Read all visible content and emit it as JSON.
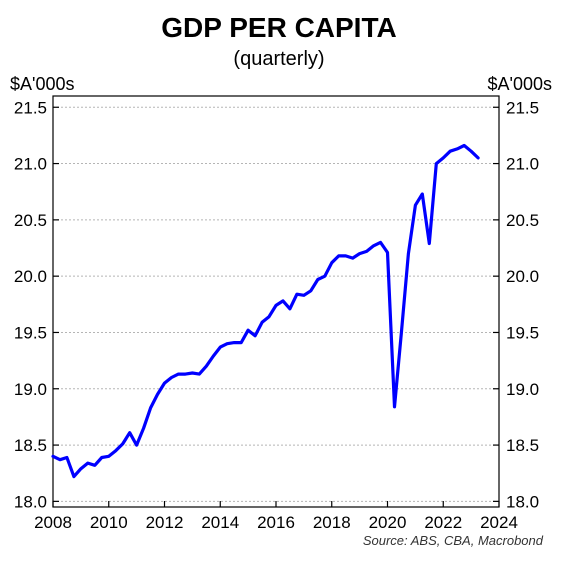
{
  "chart_data": {
    "type": "line",
    "title": "GDP PER CAPITA",
    "subtitle": "(quarterly)",
    "ylabel_left": "$A'000s",
    "ylabel_right": "$A'000s",
    "source": "Source: ABS, CBA, Macrobond",
    "xlim": [
      2008,
      2024
    ],
    "ylim": [
      17.95,
      21.6
    ],
    "x_ticks": [
      2008,
      2010,
      2012,
      2014,
      2016,
      2018,
      2020,
      2022,
      2024
    ],
    "x_tick_labels": [
      "2008",
      "2010",
      "2012",
      "2014",
      "2016",
      "2018",
      "2020",
      "2022",
      "2024"
    ],
    "y_ticks": [
      18.0,
      18.5,
      19.0,
      19.5,
      20.0,
      20.5,
      21.0,
      21.5
    ],
    "y_tick_labels": [
      "18.0",
      "18.5",
      "19.0",
      "19.5",
      "20.0",
      "20.5",
      "21.0",
      "21.5"
    ],
    "grid": "horizontal dotted",
    "line_color": "#0000ff",
    "series": [
      {
        "name": "",
        "x": [
          2008.0,
          2008.25,
          2008.5,
          2008.75,
          2009.0,
          2009.25,
          2009.5,
          2009.75,
          2010.0,
          2010.25,
          2010.5,
          2010.75,
          2011.0,
          2011.25,
          2011.5,
          2011.75,
          2012.0,
          2012.25,
          2012.5,
          2012.75,
          2013.0,
          2013.25,
          2013.5,
          2013.75,
          2014.0,
          2014.25,
          2014.5,
          2014.75,
          2015.0,
          2015.25,
          2015.5,
          2015.75,
          2016.0,
          2016.25,
          2016.5,
          2016.75,
          2017.0,
          2017.25,
          2017.5,
          2017.75,
          2018.0,
          2018.25,
          2018.5,
          2018.75,
          2019.0,
          2019.25,
          2019.5,
          2019.75,
          2020.0,
          2020.25,
          2020.5,
          2020.75,
          2021.0,
          2021.25,
          2021.5,
          2021.75,
          2022.0,
          2022.25,
          2022.5,
          2022.75,
          2023.0,
          2023.25
        ],
        "y": [
          18.4,
          18.37,
          18.39,
          18.22,
          18.29,
          18.34,
          18.32,
          18.39,
          18.4,
          18.45,
          18.51,
          18.61,
          18.5,
          18.65,
          18.83,
          18.95,
          19.05,
          19.1,
          19.13,
          19.13,
          19.14,
          19.13,
          19.2,
          19.29,
          19.37,
          19.4,
          19.41,
          19.41,
          19.52,
          19.47,
          19.59,
          19.64,
          19.74,
          19.78,
          19.71,
          19.84,
          19.83,
          19.87,
          19.97,
          20.0,
          20.12,
          20.18,
          20.18,
          20.16,
          20.2,
          20.22,
          20.27,
          20.3,
          20.21,
          18.84,
          19.5,
          20.2,
          20.63,
          20.73,
          20.29,
          21.0,
          21.05,
          21.11,
          21.13,
          21.16,
          21.11,
          21.05
        ]
      }
    ]
  }
}
